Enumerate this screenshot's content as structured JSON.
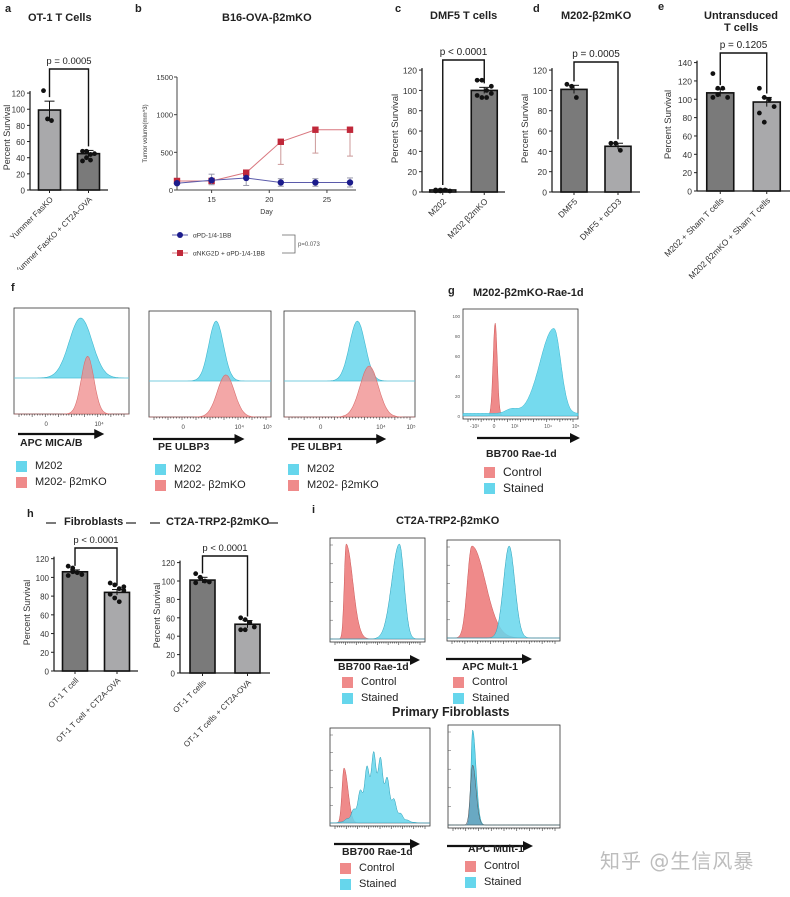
{
  "colors": {
    "bar_dark": "#7a7a7a",
    "bar_light": "#a9a9ab",
    "cyan": "#66d6ec",
    "red": "#ef8a8a",
    "blue_series": "#1c1c8c",
    "red_series": "#c0283a"
  },
  "chart_data": [
    {
      "id": "a",
      "type": "bar",
      "panel_label": "a",
      "title": "OT-1 T Cells",
      "ylabel": "Percent Survival",
      "ylim": [
        0,
        130
      ],
      "yticks": [
        0,
        20,
        40,
        60,
        80,
        100,
        120
      ],
      "categories": [
        "Yummer FasKO",
        "Yummer FasKO + CT2A-OVA"
      ],
      "values": [
        99,
        45
      ],
      "errors": [
        11,
        4
      ],
      "points": [
        [
          123,
          88,
          86
        ],
        [
          36,
          40,
          44,
          45,
          48,
          48,
          37
        ]
      ],
      "bar_shades": [
        "light",
        "dark"
      ],
      "pvalue": "p = 0.0005"
    },
    {
      "id": "b",
      "type": "line",
      "panel_label": "b",
      "title": "B16-OVA-β2mKO",
      "xlabel": "Day",
      "ylabel": "Tumor volume(mm^3)",
      "xlim": [
        12,
        27
      ],
      "ylim": [
        0,
        1500
      ],
      "xticks": [
        15,
        20,
        25
      ],
      "yticks": [
        0,
        500,
        1000,
        1500
      ],
      "x": [
        12,
        15,
        18,
        21,
        24,
        27
      ],
      "series": [
        {
          "name": "αPD-1/4-1BB",
          "marker": "circle",
          "values": [
            90,
            130,
            160,
            100,
            100,
            100
          ],
          "err_low": [
            0,
            60,
            100,
            50,
            50,
            60
          ],
          "err_high": [
            0,
            80,
            0,
            50,
            50,
            60
          ]
        },
        {
          "name": "αNKG2D + αPD-1/4-1BB",
          "marker": "square",
          "values": [
            120,
            120,
            230,
            640,
            800,
            800
          ],
          "err_low": [
            0,
            0,
            0,
            300,
            310,
            350
          ],
          "err_high": [
            0,
            0,
            0,
            0,
            0,
            0
          ]
        }
      ],
      "pvalue": "p=0.073"
    },
    {
      "id": "c",
      "type": "bar",
      "panel_label": "c",
      "title": "DMF5 T cells",
      "ylabel": "Percent Survival",
      "ylim": [
        0,
        125
      ],
      "yticks": [
        0,
        20,
        40,
        60,
        80,
        100,
        120
      ],
      "categories": [
        "M202",
        "M202 β2mKO"
      ],
      "values": [
        2,
        100
      ],
      "errors": [
        1,
        3
      ],
      "points": [
        [
          1,
          2,
          2,
          1,
          2,
          1
        ],
        [
          110,
          110,
          100,
          97,
          95,
          93,
          93,
          104
        ]
      ],
      "bar_shades": [
        "dark",
        "dark"
      ],
      "pvalue": "p < 0.0001"
    },
    {
      "id": "d",
      "type": "bar",
      "panel_label": "d",
      "title": "M202-β2mKO",
      "ylabel": "Percent Survival",
      "ylim": [
        0,
        125
      ],
      "yticks": [
        0,
        20,
        40,
        60,
        80,
        100,
        120
      ],
      "categories": [
        "DMF5",
        "DMF5 + αCD3"
      ],
      "values": [
        101,
        45
      ],
      "errors": [
        4,
        3
      ],
      "points": [
        [
          106,
          104,
          93
        ],
        [
          48,
          48,
          41
        ]
      ],
      "bar_shades": [
        "dark",
        "light"
      ],
      "pvalue": "p = 0.0005"
    },
    {
      "id": "e",
      "type": "bar",
      "panel_label": "e",
      "title": "Untransduced T cells",
      "title_lines": [
        "Untransduced",
        "T cells"
      ],
      "ylabel": "Percent Survival",
      "ylim": [
        0,
        145
      ],
      "yticks": [
        0,
        20,
        40,
        60,
        80,
        100,
        120,
        140
      ],
      "categories": [
        "M202 + Sham T cells",
        "M202 β2mKO + Sham T cells"
      ],
      "values": [
        107,
        97
      ],
      "errors": [
        4,
        5
      ],
      "points": [
        [
          128,
          112,
          112,
          102,
          102,
          105
        ],
        [
          112,
          102,
          100,
          92,
          85,
          75
        ]
      ],
      "bar_shades": [
        "dark",
        "light"
      ],
      "pvalue": "p = 0.1205"
    },
    {
      "id": "h1",
      "type": "bar",
      "panel_label": "h",
      "title": "Fibroblasts",
      "ylabel": "Percent Survival",
      "ylim": [
        0,
        125
      ],
      "yticks": [
        0,
        20,
        40,
        60,
        80,
        100,
        120
      ],
      "categories": [
        "OT-1 T cell",
        "OT-1 T cell + CT2A-OVA"
      ],
      "values": [
        106,
        84
      ],
      "errors": [
        2,
        3
      ],
      "points": [
        [
          112,
          110,
          105,
          103,
          102,
          106
        ],
        [
          94,
          92,
          88,
          86,
          82,
          78,
          74,
          90
        ]
      ],
      "bar_shades": [
        "dark",
        "light"
      ],
      "pvalue": "p < 0.0001"
    },
    {
      "id": "h2",
      "type": "bar",
      "panel_label": "",
      "title": "CT2A-TRP2-β2mKO",
      "ylabel": "Percent Survival",
      "ylim": [
        0,
        125
      ],
      "yticks": [
        0,
        20,
        40,
        60,
        80,
        100,
        120
      ],
      "categories": [
        "OT-1 T cells",
        "OT-1 T cells + CT2A-OVA"
      ],
      "values": [
        101,
        53
      ],
      "errors": [
        3,
        4
      ],
      "points": [
        [
          108,
          104,
          100,
          99,
          98
        ],
        [
          60,
          58,
          55,
          50,
          47,
          47
        ]
      ],
      "bar_shades": [
        "dark",
        "light"
      ],
      "pvalue": "p < 0.0001"
    }
  ],
  "flow": {
    "f": {
      "panel_label": "f",
      "plots": [
        {
          "axis_label": "APC MICA/B",
          "ticks": [
            "0",
            "10⁴"
          ],
          "legend": [
            "M202",
            "M202- β2mKO"
          ]
        },
        {
          "axis_label": "PE ULBP3",
          "ticks": [
            "0",
            "10⁴",
            "10⁵"
          ],
          "legend": [
            "M202",
            "M202- β2mKO"
          ]
        },
        {
          "axis_label": "PE ULBP1",
          "ticks": [
            "0",
            "10⁴",
            "10⁵"
          ],
          "legend": [
            "M202",
            "M202- β2mKO"
          ]
        }
      ]
    },
    "g": {
      "panel_label": "g",
      "title": "M202-β2mKO-Rae-1d",
      "axis_label": "BB700 Rae-1d",
      "yticks": [
        "0",
        "20",
        "40",
        "60",
        "80",
        "100"
      ],
      "xticks": [
        "-10³",
        "0",
        "10³",
        "10⁴",
        "10⁵"
      ],
      "legend": [
        "Control",
        "Stained"
      ]
    },
    "i": {
      "panel_label": "i",
      "title_top": "CT2A-TRP2-β2mKO",
      "title_bottom": "Primary Fibroblasts",
      "plots": [
        {
          "axis_label": "BB700 Rae-1d",
          "legend": [
            "Control",
            "Stained"
          ]
        },
        {
          "axis_label": "APC Mult-1",
          "legend": [
            "Control",
            "Stained"
          ]
        },
        {
          "axis_label": "BB700 Rae-1d",
          "legend": [
            "Control",
            "Stained"
          ]
        },
        {
          "axis_label": "APC Mult-1",
          "legend": [
            "Control",
            "Stained"
          ]
        }
      ]
    }
  },
  "h_group_titles": [
    "Fibroblasts",
    "CT2A-TRP2-β2mKO"
  ],
  "watermark": "知乎 @生信风暴"
}
